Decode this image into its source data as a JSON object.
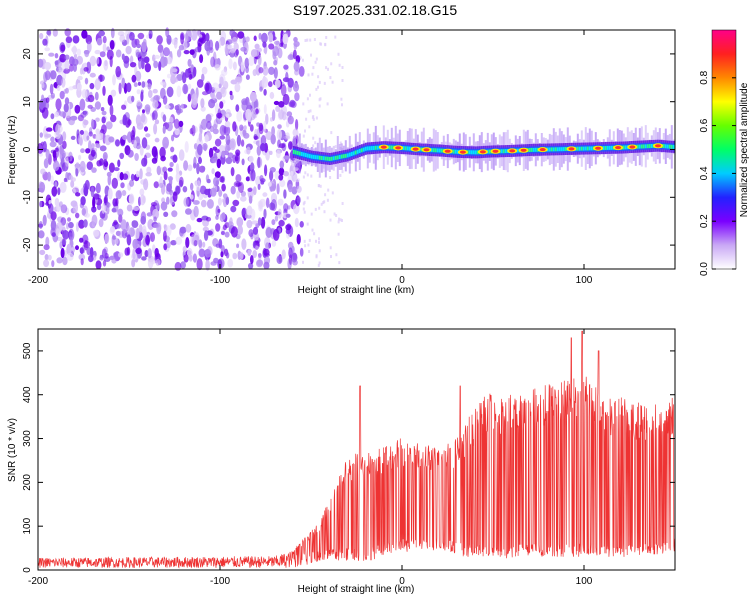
{
  "title": "S197.2025.331.02.18.G15",
  "chart_data": [
    {
      "type": "heatmap",
      "name": "spectrogram",
      "xlabel": "Height of straight line (km)",
      "ylabel": "Frequency (Hz)",
      "xlim": [
        -200,
        150
      ],
      "ylim": [
        -25,
        25
      ],
      "xticks": [
        -200,
        -100,
        0,
        100
      ],
      "yticks": [
        -20,
        -10,
        0,
        10,
        20
      ],
      "noise_until_km": -55,
      "signal_from_km": -60,
      "signal_center_hz": [
        [
          -60,
          -0.5
        ],
        [
          -50,
          -1.5
        ],
        [
          -40,
          -2.0
        ],
        [
          -30,
          -1.2
        ],
        [
          -20,
          0.2
        ],
        [
          -10,
          0.5
        ],
        [
          0,
          0.3
        ],
        [
          10,
          0.0
        ],
        [
          20,
          -0.2
        ],
        [
          30,
          -0.5
        ],
        [
          40,
          -0.6
        ],
        [
          50,
          -0.4
        ],
        [
          60,
          -0.3
        ],
        [
          70,
          -0.1
        ],
        [
          80,
          0.0
        ],
        [
          90,
          0.1
        ],
        [
          100,
          0.2
        ],
        [
          110,
          0.3
        ],
        [
          120,
          0.4
        ],
        [
          130,
          0.6
        ],
        [
          140,
          0.8
        ],
        [
          150,
          0.5
        ]
      ],
      "colorbar": {
        "label": "Normalized spectral amplitude",
        "ticks": [
          "0.0",
          "0.2",
          "0.4",
          "0.6",
          "0.8"
        ],
        "range": [
          0,
          1
        ],
        "stops": [
          "#ffffff",
          "#c9a8f5",
          "#7a00ff",
          "#2222ff",
          "#00ccff",
          "#00ff66",
          "#66ff00",
          "#ffff00",
          "#ff8800",
          "#ff2020",
          "#ff0088"
        ]
      }
    },
    {
      "type": "line",
      "name": "snr",
      "xlabel": "Height of straight line (km)",
      "ylabel": "SNR (10 * v/v)",
      "xlim": [
        -200,
        150
      ],
      "ylim": [
        0,
        550
      ],
      "xticks": [
        -200,
        -100,
        0,
        100
      ],
      "yticks": [
        0,
        100,
        200,
        300,
        400,
        500
      ],
      "color": "#ee3333",
      "envelope": {
        "low": [
          [
            -200,
            5
          ],
          [
            -60,
            5
          ],
          [
            -40,
            20
          ],
          [
            -20,
            20
          ],
          [
            0,
            40
          ],
          [
            20,
            45
          ],
          [
            35,
            30
          ],
          [
            50,
            25
          ],
          [
            70,
            30
          ],
          [
            100,
            30
          ],
          [
            130,
            30
          ],
          [
            150,
            40
          ]
        ],
        "high": [
          [
            -200,
            28
          ],
          [
            -70,
            32
          ],
          [
            -60,
            45
          ],
          [
            -50,
            90
          ],
          [
            -45,
            110
          ],
          [
            -38,
            190
          ],
          [
            -30,
            260
          ],
          [
            -22,
            270
          ],
          [
            -10,
            280
          ],
          [
            0,
            305
          ],
          [
            10,
            290
          ],
          [
            20,
            280
          ],
          [
            30,
            300
          ],
          [
            38,
            360
          ],
          [
            45,
            410
          ],
          [
            55,
            400
          ],
          [
            65,
            410
          ],
          [
            75,
            420
          ],
          [
            85,
            430
          ],
          [
            95,
            440
          ],
          [
            100,
            450
          ],
          [
            110,
            400
          ],
          [
            120,
            395
          ],
          [
            130,
            385
          ],
          [
            140,
            380
          ],
          [
            150,
            400
          ]
        ]
      },
      "spikes": [
        [
          -23,
          420
        ],
        [
          32,
          420
        ],
        [
          93,
          530
        ],
        [
          99,
          545
        ],
        [
          108,
          500
        ]
      ]
    }
  ]
}
